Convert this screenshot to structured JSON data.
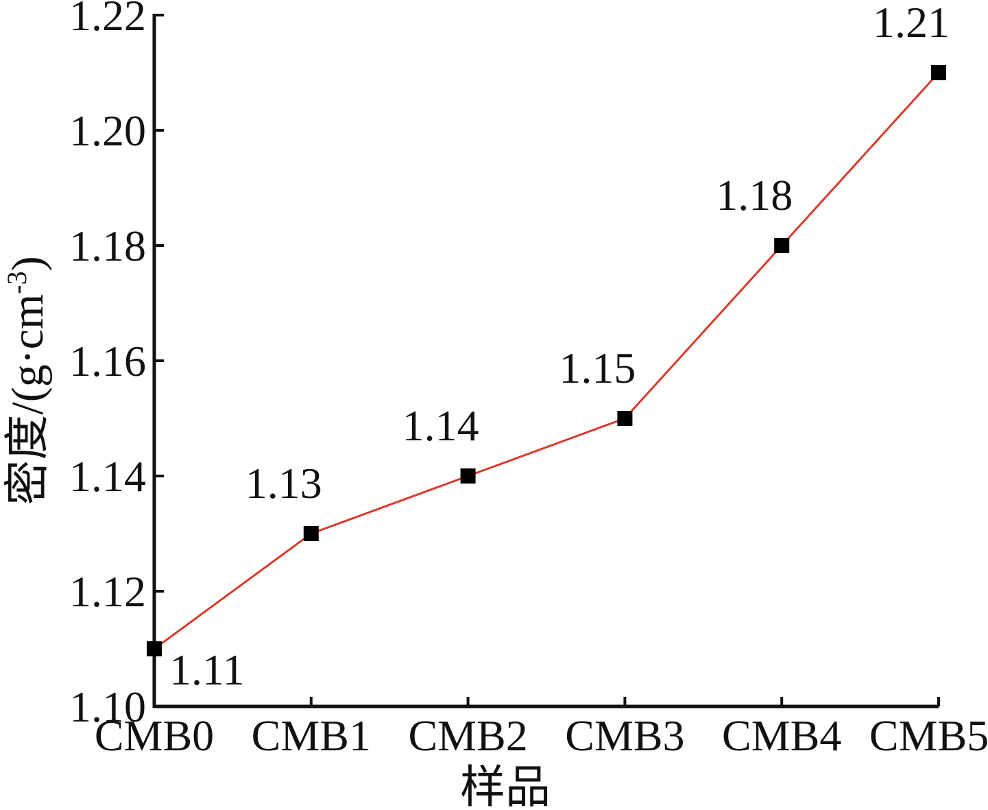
{
  "chart_data": {
    "type": "line",
    "categories": [
      "CMB0",
      "CMB1",
      "CMB2",
      "CMB3",
      "CMB4",
      "CMB5"
    ],
    "values": [
      1.11,
      1.13,
      1.14,
      1.15,
      1.18,
      1.21
    ],
    "data_labels": [
      "1.11",
      "1.13",
      "1.14",
      "1.15",
      "1.18",
      "1.21"
    ],
    "xlabel": "样品",
    "ylabel": "密度/(g·cm",
    "ylabel_sup": "-3",
    "ylabel_end": ")",
    "ylim": [
      1.1,
      1.22
    ],
    "yticks": [
      "1.10",
      "1.12",
      "1.14",
      "1.16",
      "1.18",
      "1.20",
      "1.22"
    ],
    "grid": false,
    "colors": {
      "line": "#d93a2b",
      "marker": "#000000",
      "axis": "#111111"
    }
  }
}
